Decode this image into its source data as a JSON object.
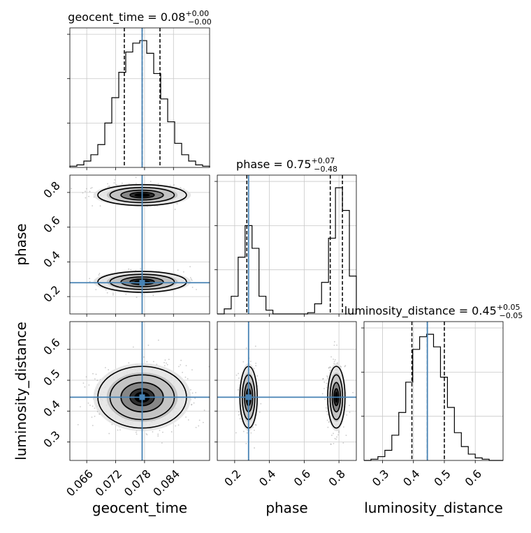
{
  "chart_data": {
    "type": "corner",
    "parameters": [
      {
        "name": "geocent_time",
        "axis_label": "geocent_time",
        "range": [
          0.0625,
          0.0915
        ],
        "ticks": [
          0.066,
          0.072,
          0.078,
          0.084
        ],
        "tick_labels": [
          "0.066",
          "0.072",
          "0.078",
          "0.084"
        ],
        "title": {
          "prefix": "geocent_time = ",
          "value": "0.08",
          "plus": "+0.00",
          "minus": "−0.00"
        },
        "truth": 0.0775,
        "quantiles": [
          0.0738,
          0.0775,
          0.0812
        ],
        "hist_edges": [
          0.0625,
          0.06395,
          0.0654,
          0.06685,
          0.0683,
          0.06975,
          0.0712,
          0.07265,
          0.0741,
          0.07555,
          0.077,
          0.07845,
          0.0799,
          0.08135,
          0.0828,
          0.08425,
          0.0857,
          0.08715,
          0.0886,
          0.09005,
          0.0915
        ],
        "hist_counts": [
          0.01,
          0.02,
          0.05,
          0.1,
          0.18,
          0.35,
          0.55,
          0.75,
          0.91,
          0.98,
          1.0,
          0.9,
          0.74,
          0.54,
          0.36,
          0.19,
          0.1,
          0.05,
          0.02,
          0.01
        ]
      },
      {
        "name": "phase",
        "axis_label": "phase",
        "range": [
          0.1,
          0.9
        ],
        "ticks": [
          0.2,
          0.4,
          0.6,
          0.8
        ],
        "tick_labels": [
          "0.2",
          "0.4",
          "0.6",
          "0.8"
        ],
        "title": {
          "prefix": "phase = ",
          "value": "0.75",
          "plus": "+0.07",
          "minus": "−0.48"
        },
        "truth": 0.28,
        "quantiles": [
          0.27,
          0.75,
          0.82
        ],
        "hist_edges": [
          0.1,
          0.14,
          0.18,
          0.22,
          0.26,
          0.3,
          0.34,
          0.38,
          0.42,
          0.46,
          0.5,
          0.54,
          0.58,
          0.62,
          0.66,
          0.7,
          0.74,
          0.78,
          0.82,
          0.86,
          0.9
        ],
        "hist_counts": [
          0.0,
          0.04,
          0.14,
          0.45,
          0.7,
          0.52,
          0.14,
          0.03,
          0.0,
          0.0,
          0.0,
          0.0,
          0.0,
          0.01,
          0.08,
          0.25,
          0.6,
          1.0,
          0.82,
          0.3
        ]
      },
      {
        "name": "luminosity_distance",
        "axis_label": "luminosity_distance",
        "range": [
          0.24,
          0.69
        ],
        "ticks": [
          0.3,
          0.4,
          0.5,
          0.6
        ],
        "tick_labels": [
          "0.3",
          "0.4",
          "0.5",
          "0.6"
        ],
        "title": {
          "prefix": "luminosity_distance = ",
          "value": "0.45",
          "plus": "+0.05",
          "minus": "−0.05"
        },
        "truth": 0.445,
        "quantiles": [
          0.395,
          0.445,
          0.5
        ],
        "hist_edges": [
          0.24,
          0.2625,
          0.285,
          0.3075,
          0.33,
          0.3525,
          0.375,
          0.3975,
          0.42,
          0.4425,
          0.465,
          0.4875,
          0.51,
          0.5325,
          0.555,
          0.5775,
          0.6,
          0.6225,
          0.645,
          0.6675,
          0.69
        ],
        "hist_counts": [
          0.0,
          0.01,
          0.03,
          0.08,
          0.2,
          0.38,
          0.62,
          0.88,
          0.98,
          1.0,
          0.9,
          0.66,
          0.42,
          0.22,
          0.11,
          0.05,
          0.02,
          0.01,
          0.0,
          0.0
        ]
      }
    ],
    "pairs": [
      {
        "x": "geocent_time",
        "y": "phase",
        "modes": [
          {
            "cx": 0.0775,
            "cy": 0.785,
            "sx": 0.0046,
            "sy": 0.03,
            "w": 0.6
          },
          {
            "cx": 0.0775,
            "cy": 0.285,
            "sx": 0.0046,
            "sy": 0.03,
            "w": 0.4
          }
        ]
      },
      {
        "x": "geocent_time",
        "y": "luminosity_distance",
        "modes": [
          {
            "cx": 0.0775,
            "cy": 0.445,
            "sx": 0.0046,
            "sy": 0.05,
            "w": 1.0
          }
        ]
      },
      {
        "x": "phase",
        "y": "luminosity_distance",
        "modes": [
          {
            "cx": 0.28,
            "cy": 0.445,
            "sx": 0.025,
            "sy": 0.05,
            "w": 0.4
          },
          {
            "cx": 0.785,
            "cy": 0.445,
            "sx": 0.025,
            "sy": 0.05,
            "w": 0.6
          }
        ]
      }
    ],
    "truth_color": "#4682b4",
    "line_color": "#000000",
    "grid": true,
    "grid_color": "#c8c8c8"
  }
}
